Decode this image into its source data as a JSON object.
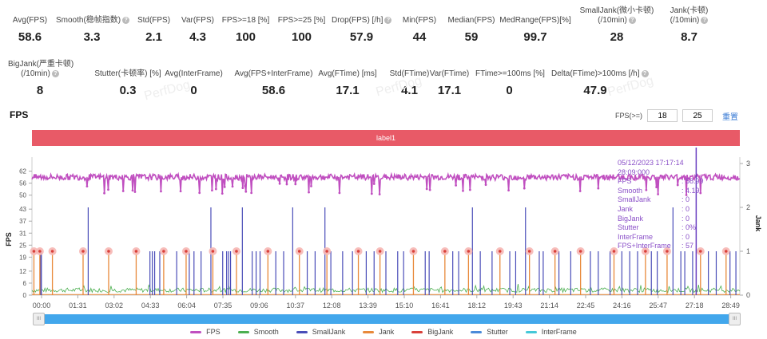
{
  "stats_row1": [
    {
      "label": "Avg(FPS)",
      "value": "58.6",
      "help": false
    },
    {
      "label": "Smooth(稳帧指数)",
      "value": "3.3",
      "help": true
    },
    {
      "label": "Std(FPS)",
      "value": "2.1",
      "help": false
    },
    {
      "label": "Var(FPS)",
      "value": "4.3",
      "help": false
    },
    {
      "label": "FPS>=18 [%]",
      "value": "100",
      "help": false
    },
    {
      "label": "FPS>=25 [%]",
      "value": "100",
      "help": false
    },
    {
      "label": "Drop(FPS) [/h]",
      "value": "57.9",
      "help": true
    },
    {
      "label": "Min(FPS)",
      "value": "44",
      "help": false
    },
    {
      "label": "Median(FPS)",
      "value": "59",
      "help": false
    },
    {
      "label": "MedRange(FPS)[%]",
      "value": "99.7",
      "help": false
    },
    {
      "label": "SmallJank(微小卡顿)",
      "label2": "(/10min)",
      "value": "28",
      "help": true
    },
    {
      "label": "Jank(卡顿)",
      "label2": "(/10min)",
      "value": "8.7",
      "help": true
    }
  ],
  "stats_row2": [
    {
      "label": "BigJank(严重卡顿)",
      "label2": "(/10min)",
      "value": "8",
      "help": true
    },
    {
      "label": "Stutter(卡顿率) [%]",
      "value": "0.3",
      "help": false
    },
    {
      "label": "Avg(InterFrame)",
      "value": "0",
      "help": false
    },
    {
      "label": "Avg(FPS+InterFrame)",
      "value": "58.6",
      "help": false
    },
    {
      "label": "Avg(FTime) [ms]",
      "value": "17.1",
      "help": false
    },
    {
      "label": "Std(FTime)",
      "value": "4.1",
      "help": false
    },
    {
      "label": "Var(FTime)",
      "value": "17.1",
      "help": false
    },
    {
      "label": "FTime>=100ms [%]",
      "value": "0",
      "help": false
    },
    {
      "label": "Delta(FTime)>100ms [/h]",
      "value": "47.9",
      "help": true
    }
  ],
  "watermark": "PerfDog",
  "section_title": "FPS",
  "threshold": {
    "label": "FPS(>=)",
    "value1": "18",
    "value2": "25",
    "reset_label": "重置"
  },
  "label_bar": "label1",
  "tooltip": {
    "time": "05/12/2023 17:17:14",
    "elapsed": "28:09:000",
    "rows": [
      {
        "k": "FPS",
        "v": ": 58.99"
      },
      {
        "k": "Smooth",
        "v": ": 4.19"
      },
      {
        "k": "SmallJank",
        "v": ": 0"
      },
      {
        "k": "Jank",
        "v": ": 0"
      },
      {
        "k": "BigJank",
        "v": ": 0"
      },
      {
        "k": "Stutter",
        "v": ": 0%"
      },
      {
        "k": "InterFrame",
        "v": ": 0"
      },
      {
        "k": "FPS+InterFrame",
        "v": ": 57"
      }
    ]
  },
  "slider_handle": "III",
  "chart_data": {
    "type": "line",
    "title": "FPS",
    "ylabel": "FPS",
    "ylabel_right": "Jank",
    "yticks_left": [
      0,
      6,
      12,
      19,
      25,
      31,
      37,
      43,
      50,
      56,
      62
    ],
    "yticks_right": [
      0,
      1,
      2,
      3
    ],
    "ylim_left": [
      0,
      69
    ],
    "ylim_right": [
      0,
      3
    ],
    "xticks": [
      "00:00",
      "01:31",
      "03:02",
      "04:33",
      "06:04",
      "07:35",
      "09:06",
      "10:37",
      "12:08",
      "13:39",
      "15:10",
      "16:41",
      "18:12",
      "19:43",
      "21:14",
      "22:45",
      "24:16",
      "25:47",
      "27:18",
      "28:49"
    ],
    "x_range_seconds": [
      0,
      1800
    ],
    "fps_baseline": 59,
    "smooth_baseline": 2.5,
    "bigjank_times_s": [
      5,
      20,
      52,
      130,
      195,
      265,
      335,
      392,
      460,
      520,
      600,
      680,
      750,
      830,
      885,
      970,
      1050,
      1110,
      1190,
      1265,
      1330,
      1395,
      1480,
      1560,
      1615,
      1700,
      1765
    ],
    "smalljank_tall_times_s": [
      143,
      455,
      535,
      663,
      745,
      1120,
      1255,
      1630
    ],
    "smalljank_times_s": [
      22,
      24,
      300,
      306,
      312,
      325,
      368,
      400,
      412,
      430,
      485,
      495,
      500,
      505,
      560,
      570,
      580,
      620,
      640,
      700,
      720,
      760,
      790,
      815,
      850,
      870,
      900,
      930,
      945,
      1000,
      1010,
      1070,
      1085,
      1140,
      1170,
      1215,
      1230,
      1290,
      1300,
      1340,
      1370,
      1420,
      1440,
      1470,
      1500,
      1520,
      1540,
      1575,
      1590,
      1650,
      1660,
      1680,
      1720,
      1740,
      1775,
      1790
    ],
    "cursor_time_s": 1689,
    "legend": [
      {
        "name": "FPS",
        "color": "#c04fc0"
      },
      {
        "name": "Smooth",
        "color": "#4caf50"
      },
      {
        "name": "SmallJank",
        "color": "#4a4db8"
      },
      {
        "name": "Jank",
        "color": "#e8893a"
      },
      {
        "name": "BigJank",
        "color": "#d9403a"
      },
      {
        "name": "Stutter",
        "color": "#4a8ad9"
      },
      {
        "name": "InterFrame",
        "color": "#45c8d8"
      }
    ]
  }
}
